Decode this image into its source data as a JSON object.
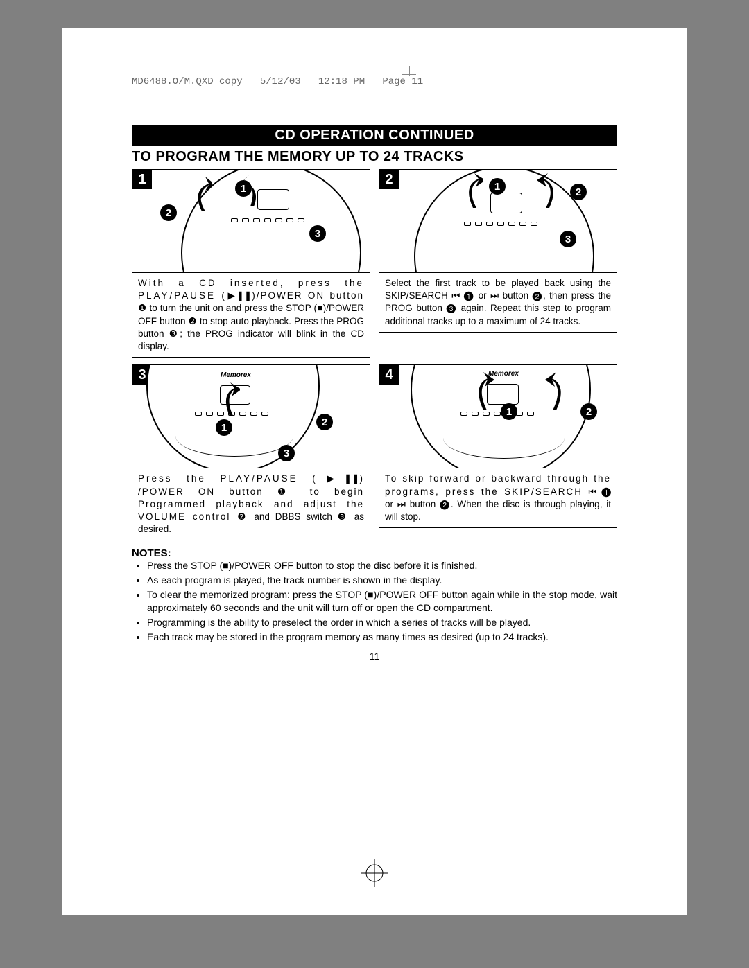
{
  "header": {
    "filename": "MD6488.O/M.QXD copy",
    "date": "5/12/03",
    "time": "12:18 PM",
    "page_label": "Page 11"
  },
  "section_title": "CD OPERATION CONTINUED",
  "subsection_title": "TO PROGRAM THE MEMORY UP TO 24 TRACKS",
  "steps": [
    {
      "num": "1",
      "callouts": [
        "2",
        "1",
        "3"
      ],
      "caption_parts": [
        {
          "t": "With a CD inserted, press the PLAY/PAUSE (",
          "cls": "letter-spread2"
        },
        {
          "t": "▶❚❚"
        },
        {
          "t": ")/POWER ON button ",
          "cls": "letter-spread"
        },
        {
          "t": "❶"
        },
        {
          "t": " to turn the unit on and press the STOP ("
        },
        {
          "t": "■"
        },
        {
          "t": ")/POWER OFF button "
        },
        {
          "t": "❷"
        },
        {
          "t": " to stop auto playback.  Press the PROG button "
        },
        {
          "t": "❸"
        },
        {
          "t": "; the PROG indicator will blink in the CD display."
        }
      ]
    },
    {
      "num": "2",
      "callouts": [
        "1",
        "2",
        "3"
      ],
      "caption_parts": [
        {
          "t": "Select the first track to be played back using the SKIP/SEARCH "
        },
        {
          "t": "⏮"
        },
        {
          "t": " "
        },
        {
          "t": "❶"
        },
        {
          "t": " or "
        },
        {
          "t": "⏭"
        },
        {
          "t": " button "
        },
        {
          "t": "❷"
        },
        {
          "t": ", then press the PROG button "
        },
        {
          "t": "❸"
        },
        {
          "t": " again. Repeat this step to program additional tracks up to a maximum of 24 tracks."
        }
      ]
    },
    {
      "num": "3",
      "callouts": [
        "1",
        "2",
        "3"
      ],
      "brand": "Memorex",
      "caption_parts": [
        {
          "t": "Press the PLAY/PAUSE (",
          "cls": "letter-spread2"
        },
        {
          "t": "▶❚❚"
        },
        {
          "t": ") /POWER ON button ",
          "cls": "letter-spread"
        },
        {
          "t": "❶"
        },
        {
          "t": " to begin Programmed playback and adjust the VOLUME control ",
          "cls": "letter-spread"
        },
        {
          "t": "❷"
        },
        {
          "t": " and DBBS  switch "
        },
        {
          "t": "❸"
        },
        {
          "t": " as desired."
        }
      ]
    },
    {
      "num": "4",
      "callouts": [
        "1",
        "2"
      ],
      "brand": "Memorex",
      "caption_parts": [
        {
          "t": "To skip forward or backward through the programs, press the SKIP/SEARCH  ",
          "cls": "letter-spread"
        },
        {
          "t": "⏮"
        },
        {
          "t": " "
        },
        {
          "t": "❶"
        },
        {
          "t": " or "
        },
        {
          "t": "⏭"
        },
        {
          "t": "  button "
        },
        {
          "t": "❷"
        },
        {
          "t": ". When the disc is through playing, it will stop."
        }
      ]
    }
  ],
  "notes_heading": "NOTES:",
  "notes": [
    "Press the STOP (■)/POWER OFF button to stop the disc before it is finished.",
    "As each program is played, the track number is shown in the display.",
    "To clear the memorized program: press the STOP (■)/POWER OFF button again while in the stop mode, wait approximately 60 seconds and the unit will turn off or open the CD compartment.",
    "Programming is the ability to preselect the order in which a series of tracks will be played.",
    "Each track may be stored in the program memory as many times as desired (up to 24 tracks)."
  ],
  "page_number": "11",
  "colors": {
    "page_bg": "#ffffff",
    "outer_bg": "#808080",
    "ink": "#000000",
    "header_text": "#666666"
  }
}
